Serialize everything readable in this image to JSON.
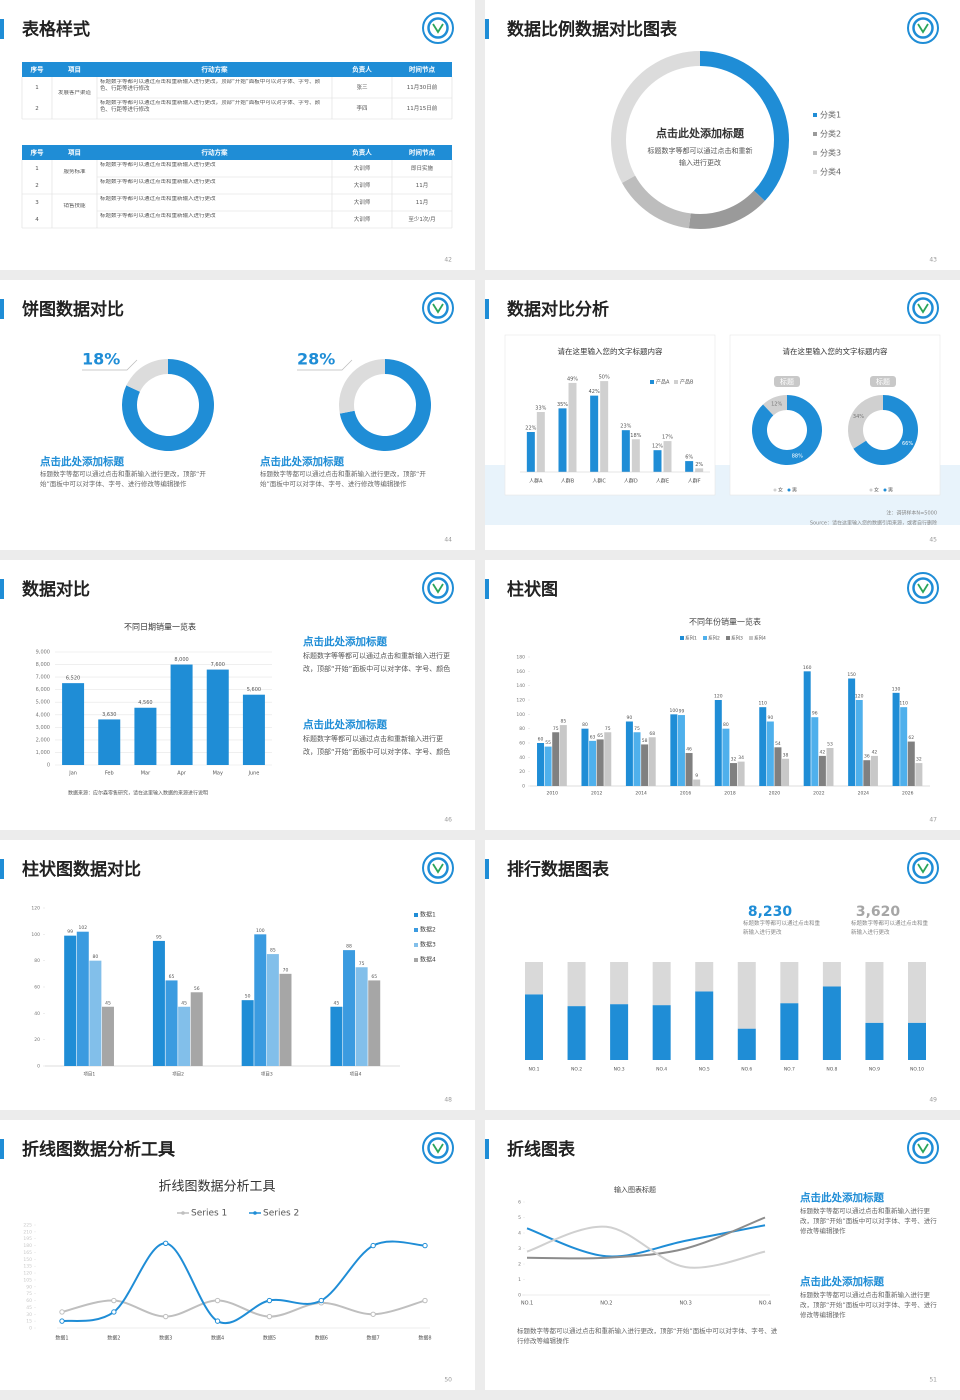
{
  "slides": [
    {
      "title": "表格样式",
      "page": "42",
      "tables": [
        {
          "header": [
            "序号",
            "项目",
            "行动方案",
            "负责人",
            "时间节点"
          ],
          "groups": [
            {
              "project": "发展客户渠道",
              "rows": [
                [
                  "1",
                  "标题数字等都可以通过点击和重新输入进行更改，顶部“开始”面板中可以对字体、字号、颜色、行距等进行修改",
                  "张三",
                  "11月30日前"
                ],
                [
                  "2",
                  "标题数字等都可以通过点击和重新输入进行更改，顶部“开始”面板中可以对字体、字号、颜色、行距等进行修改",
                  "李四",
                  "11月15日前"
                ]
              ]
            }
          ]
        },
        {
          "header": [
            "序号",
            "项目",
            "行动方案",
            "负责人",
            "时间节点"
          ],
          "groups": [
            {
              "project": "服务标准",
              "rows": [
                [
                  "1",
                  "标题数字等都可以通过点击和重新输入进行更改",
                  "大训师",
                  "即日实施"
                ],
                [
                  "2",
                  "标题数字等都可以通过点击和重新输入进行更改",
                  "大训师",
                  "11月"
                ]
              ]
            },
            {
              "project": "销售技能",
              "rows": [
                [
                  "3",
                  "标题数字等都可以通过点击和重新输入进行更改",
                  "大训师",
                  "11月"
                ],
                [
                  "4",
                  "标题数字等都可以通过点击和重新输入进行更改",
                  "大训师",
                  "至少1次/月"
                ]
              ]
            }
          ]
        }
      ]
    },
    {
      "title": "数据比例数据对比图表",
      "page": "43",
      "heading": "点击此处添加标题",
      "text": "标题数字等都可以通过点击和重新输入进行更改",
      "chart": {
        "type": "donut",
        "categories": [
          "分类1",
          "分类2",
          "分类3",
          "分类4"
        ],
        "values": [
          37,
          15,
          15,
          33
        ],
        "colors": [
          "#1f8dd6",
          "#9a9a9a",
          "#bdbdbd",
          "#dcdcdc"
        ]
      }
    },
    {
      "title": "饼图数据对比",
      "page": "44",
      "color": "#1f8dd6",
      "items": [
        {
          "value": 18,
          "value_label": "18%",
          "heading": "点击此处添加标题",
          "text": "标题数字等都可以通过点击和重新输入进行更改，顶部“开始”面板中可以对字体、字号、进行修改等编辑操作"
        },
        {
          "value": 28,
          "value_label": "28%",
          "heading": "点击此处添加标题",
          "text": "标题数字等都可以通过点击和重新输入进行更改，顶部“开始”面板中可以对字体、字号、进行修改等编辑操作"
        }
      ]
    },
    {
      "title": "数据对比分析",
      "page": "45",
      "bar_chart": {
        "type": "bar",
        "title": "请在这里输入您的文字标题内容",
        "categories": [
          "人群A",
          "人群B",
          "人群C",
          "人群D",
          "人群E",
          "人群F"
        ],
        "series": [
          {
            "name": "产品A",
            "color": "#1f8dd6",
            "values": [
              22,
              35,
              42,
              23,
              12,
              6
            ],
            "value_labels": [
              "22%",
              "35%",
              "42%",
              "23%",
              "12%",
              "6%"
            ]
          },
          {
            "name": "产品B",
            "color": "#d0d0d0",
            "values": [
              33,
              49,
              50,
              18,
              17,
              2
            ],
            "value_labels": [
              "33%",
              "49%",
              "50%",
              "18%",
              "17%",
              "2%"
            ]
          }
        ],
        "ylim": [
          0,
          55
        ]
      },
      "donut_chart": {
        "type": "donut",
        "title": "请在这里输入您的文字标题内容",
        "legend": [
          {
            "name": "女",
            "color": "#d0d0d0"
          },
          {
            "name": "男",
            "color": "#1f8dd6"
          }
        ],
        "donuts": [
          {
            "title": "标题",
            "values": [
              12,
              88
            ],
            "value_labels": [
              "12%",
              "88%"
            ]
          },
          {
            "title": "标题",
            "values": [
              34,
              66
            ],
            "value_labels": [
              "34%",
              "66%"
            ]
          }
        ]
      },
      "note": "注：调研样本N=5000",
      "source": "Source：请在这里输入您的数据引用来源，或者自行删除"
    },
    {
      "title": "数据对比",
      "page": "46",
      "chart": {
        "type": "bar",
        "title": "不同日期销量一览表",
        "categories": [
          "Jan",
          "Feb",
          "Mar",
          "Apr",
          "May",
          "June"
        ],
        "values": [
          6520,
          3630,
          4560,
          8000,
          7600,
          5600
        ],
        "value_labels": [
          "6,520",
          "3,630",
          "4,560",
          "8,000",
          "7,600",
          "5,600"
        ],
        "color": "#1f8dd6",
        "ylim": [
          0,
          9000
        ],
        "yticks": [
          0,
          {
            "value": 1000,
            "label": "1,000"
          },
          {
            "value": 2000,
            "label": "2,000"
          },
          {
            "value": 3000,
            "label": "3,000"
          },
          {
            "value": 4000,
            "label": "4,000"
          },
          {
            "value": 5000,
            "label": "5,000"
          },
          {
            "value": 6000,
            "label": "6,000"
          },
          {
            "value": 7000,
            "label": "7,000"
          },
          {
            "value": 8000,
            "label": "8,000"
          },
          {
            "value": 9000,
            "label": "9,000"
          }
        ],
        "grid": true,
        "source": "数据来源：应尔森零售研究，请在这里输入数据的来源进行说明"
      },
      "blocks": [
        {
          "heading": "点击此处添加标题",
          "text": "标题数字等等都可以通过点击和重新输入进行更改，顶部“开始”面板中可以对字体、字号、颜色"
        },
        {
          "heading": "点击此处添加标题",
          "text": "标题数字等都可以通过点击和重新输入进行更改，顶部“开始”面板中可以对字体、字号、颜色"
        }
      ]
    },
    {
      "title": "柱状图",
      "page": "47",
      "chart": {
        "type": "bar",
        "title": "不同年份销量一览表",
        "categories": [
          "2010",
          "2012",
          "2014",
          "2016",
          "2018",
          "2020",
          "2022",
          "2024",
          "2026"
        ],
        "series": [
          {
            "name": "系列1",
            "color": "#1f8dd6",
            "values": [
              60,
              80,
              90,
              100,
              120,
              110,
              160,
              150,
              130
            ]
          },
          {
            "name": "系列2",
            "color": "#4fb0ec",
            "values": [
              55,
              63,
              75,
              99,
              80,
              90,
              96,
              120,
              110
            ]
          },
          {
            "name": "系列3",
            "color": "#808080",
            "values": [
              75,
              65,
              58,
              46,
              32,
              54,
              42,
              36,
              62
            ]
          },
          {
            "name": "系列4",
            "color": "#c8c8c8",
            "values": [
              85,
              75,
              68,
              9,
              34,
              38,
              53,
              42,
              32
            ]
          }
        ],
        "ylim": [
          0,
          180
        ],
        "yticks": [
          0,
          20,
          40,
          60,
          80,
          100,
          120,
          140,
          160,
          180
        ]
      }
    },
    {
      "title": "柱状图数据对比",
      "page": "48",
      "chart": {
        "type": "bar",
        "categories": [
          "项目1",
          "项目2",
          "项目3",
          "项目4"
        ],
        "series": [
          {
            "name": "数据1",
            "color": "#1f8dd6",
            "values": [
              99,
              95,
              50,
              45
            ]
          },
          {
            "name": "数据2",
            "color": "#3b9be0",
            "values": [
              102,
              65,
              100,
              88
            ]
          },
          {
            "name": "数据3",
            "color": "#82bfea",
            "values": [
              80,
              45,
              85,
              75
            ]
          },
          {
            "name": "数据4",
            "color": "#a6a6a6",
            "values": [
              45,
              56,
              70,
              65
            ]
          }
        ],
        "ylim": [
          0,
          120
        ],
        "yticks": [
          0,
          20,
          40,
          60,
          80,
          100,
          120
        ]
      }
    },
    {
      "title": "排行数据图表",
      "page": "49",
      "stats": [
        {
          "number": "8,230",
          "color": "#1f8dd6",
          "text": "标题数字等都可以通过点击和重新输入进行更改"
        },
        {
          "number": "3,620",
          "color": "#a6a6a6",
          "text": "标题数字等都可以通过点击和重新输入进行更改"
        }
      ],
      "chart": {
        "type": "stacked_bar",
        "categories": [
          "NO.1",
          "NO.2",
          "NO.3",
          "NO.4",
          "NO.5",
          "NO.6",
          "NO.7",
          "NO.8",
          "NO.9",
          "NO.10"
        ],
        "series": [
          {
            "color": "#1f8dd6",
            "values": [
              67,
              55,
              57,
              56,
              70,
              32,
              58,
              75,
              38,
              38
            ]
          },
          {
            "color": "#d9d9d9",
            "values": [
              33,
              45,
              43,
              44,
              30,
              68,
              42,
              25,
              62,
              62
            ]
          }
        ],
        "ylim": [
          0,
          100
        ]
      }
    },
    {
      "title": "折线图数据分析工具",
      "page": "50",
      "chart": {
        "type": "line",
        "title": "折线图数据分析工具",
        "categories": [
          "数据1",
          "数据2",
          "数据3",
          "数据4",
          "数据5",
          "数据6",
          "数据7",
          "数据8"
        ],
        "series": [
          {
            "name": "Series 1",
            "color": "#bfbfbf",
            "values": [
              35,
              60,
              25,
              60,
              25,
              55,
              30,
              60
            ]
          },
          {
            "name": "Series 2",
            "color": "#1f8dd6",
            "values": [
              15,
              35,
              185,
              15,
              60,
              60,
              180,
              180
            ]
          }
        ],
        "ylim": [
          0,
          225
        ],
        "yticks": [
          0,
          15,
          30,
          45,
          60,
          75,
          90,
          105,
          120,
          135,
          150,
          165,
          180,
          195,
          210,
          225
        ],
        "smooth": true
      }
    },
    {
      "title": "折线图表",
      "page": "51",
      "chart": {
        "type": "line",
        "title": "输入图表标题",
        "categories": [
          "NO.1",
          "NO.2",
          "NO.3",
          "NO.4"
        ],
        "series": [
          {
            "color": "#1f8dd6",
            "values": [
              4.3,
              2.5,
              3.5,
              4.5
            ]
          },
          {
            "color": "#8c8c8c",
            "values": [
              2.4,
              2.4,
              3,
              5
            ]
          },
          {
            "color": "#d0d0d0",
            "values": [
              2.8,
              4.4,
              1.8,
              2.8
            ]
          }
        ],
        "ylim": [
          0,
          6
        ],
        "yticks": [
          0,
          1,
          2,
          3,
          4,
          5,
          6
        ],
        "smooth": true
      },
      "caption": "标题数字等都可以通过点击和重新输入进行更改，顶部“开始”面板中可以对字体、字号、进行修改等编辑操作",
      "blocks": [
        {
          "heading": "点击此处添加标题",
          "text": "标题数字等都可以通过点击和重新输入进行更改，顶部“开始”面板中可以对字体、字号、进行修改等编辑操作"
        },
        {
          "heading": "点击此处添加标题",
          "text": "标题数字等都可以通过点击和重新输入进行更改，顶部“开始”面板中可以对字体、字号、进行修改等编辑操作"
        }
      ]
    }
  ]
}
